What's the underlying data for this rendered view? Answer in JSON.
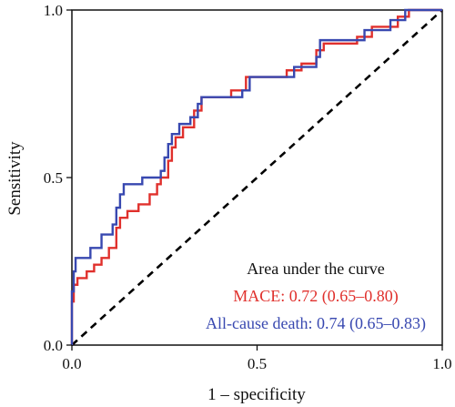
{
  "chart_data": {
    "type": "line",
    "title": "",
    "xlabel": "1 – specificity",
    "ylabel": "Sensitivity",
    "xlim": [
      0,
      1
    ],
    "ylim": [
      0,
      1
    ],
    "xticks": [
      0.0,
      0.5,
      1.0
    ],
    "yticks": [
      0.0,
      0.5,
      1.0
    ],
    "xtick_labels": [
      "0.0",
      "0.5",
      "1.0"
    ],
    "ytick_labels": [
      "0.0",
      "0.5",
      "1.0"
    ],
    "grid": false,
    "legend_placement": "bottom-right",
    "legend_title": "Area under the curve",
    "reference_line": {
      "style": "dashed",
      "color": "#000000",
      "points": [
        [
          0,
          0
        ],
        [
          1,
          1
        ]
      ]
    },
    "series": [
      {
        "name": "MACE: 0.72 (0.65–0.80)",
        "color": "#e0302c",
        "points": [
          [
            0,
            0
          ],
          [
            0,
            0.13
          ],
          [
            0.005,
            0.13
          ],
          [
            0.005,
            0.18
          ],
          [
            0.015,
            0.18
          ],
          [
            0.015,
            0.2
          ],
          [
            0.04,
            0.2
          ],
          [
            0.04,
            0.22
          ],
          [
            0.06,
            0.22
          ],
          [
            0.06,
            0.24
          ],
          [
            0.08,
            0.24
          ],
          [
            0.08,
            0.26
          ],
          [
            0.1,
            0.26
          ],
          [
            0.1,
            0.29
          ],
          [
            0.12,
            0.29
          ],
          [
            0.12,
            0.35
          ],
          [
            0.13,
            0.35
          ],
          [
            0.13,
            0.38
          ],
          [
            0.15,
            0.38
          ],
          [
            0.15,
            0.4
          ],
          [
            0.18,
            0.4
          ],
          [
            0.18,
            0.42
          ],
          [
            0.21,
            0.42
          ],
          [
            0.21,
            0.45
          ],
          [
            0.23,
            0.45
          ],
          [
            0.23,
            0.48
          ],
          [
            0.24,
            0.48
          ],
          [
            0.24,
            0.5
          ],
          [
            0.26,
            0.5
          ],
          [
            0.26,
            0.55
          ],
          [
            0.27,
            0.55
          ],
          [
            0.27,
            0.59
          ],
          [
            0.28,
            0.59
          ],
          [
            0.28,
            0.62
          ],
          [
            0.3,
            0.62
          ],
          [
            0.3,
            0.65
          ],
          [
            0.33,
            0.65
          ],
          [
            0.33,
            0.7
          ],
          [
            0.35,
            0.7
          ],
          [
            0.35,
            0.74
          ],
          [
            0.43,
            0.74
          ],
          [
            0.43,
            0.76
          ],
          [
            0.47,
            0.76
          ],
          [
            0.47,
            0.8
          ],
          [
            0.58,
            0.8
          ],
          [
            0.58,
            0.82
          ],
          [
            0.62,
            0.82
          ],
          [
            0.62,
            0.84
          ],
          [
            0.66,
            0.84
          ],
          [
            0.66,
            0.88
          ],
          [
            0.68,
            0.88
          ],
          [
            0.68,
            0.9
          ],
          [
            0.77,
            0.9
          ],
          [
            0.77,
            0.92
          ],
          [
            0.81,
            0.92
          ],
          [
            0.81,
            0.95
          ],
          [
            0.88,
            0.95
          ],
          [
            0.88,
            0.98
          ],
          [
            0.91,
            0.98
          ],
          [
            0.91,
            1.0
          ],
          [
            1.0,
            1.0
          ]
        ]
      },
      {
        "name": "All-cause death: 0.74 (0.65–0.83)",
        "color": "#3848b0",
        "points": [
          [
            0,
            0
          ],
          [
            0,
            0.16
          ],
          [
            0.005,
            0.16
          ],
          [
            0.005,
            0.22
          ],
          [
            0.01,
            0.22
          ],
          [
            0.01,
            0.26
          ],
          [
            0.05,
            0.26
          ],
          [
            0.05,
            0.29
          ],
          [
            0.08,
            0.29
          ],
          [
            0.08,
            0.33
          ],
          [
            0.11,
            0.33
          ],
          [
            0.11,
            0.36
          ],
          [
            0.12,
            0.36
          ],
          [
            0.12,
            0.41
          ],
          [
            0.13,
            0.41
          ],
          [
            0.13,
            0.45
          ],
          [
            0.14,
            0.45
          ],
          [
            0.14,
            0.48
          ],
          [
            0.19,
            0.48
          ],
          [
            0.19,
            0.5
          ],
          [
            0.24,
            0.5
          ],
          [
            0.24,
            0.52
          ],
          [
            0.25,
            0.52
          ],
          [
            0.25,
            0.56
          ],
          [
            0.26,
            0.56
          ],
          [
            0.26,
            0.6
          ],
          [
            0.27,
            0.6
          ],
          [
            0.27,
            0.63
          ],
          [
            0.29,
            0.63
          ],
          [
            0.29,
            0.66
          ],
          [
            0.32,
            0.66
          ],
          [
            0.32,
            0.68
          ],
          [
            0.34,
            0.68
          ],
          [
            0.34,
            0.72
          ],
          [
            0.35,
            0.72
          ],
          [
            0.35,
            0.74
          ],
          [
            0.46,
            0.74
          ],
          [
            0.46,
            0.76
          ],
          [
            0.48,
            0.76
          ],
          [
            0.48,
            0.8
          ],
          [
            0.6,
            0.8
          ],
          [
            0.6,
            0.83
          ],
          [
            0.66,
            0.83
          ],
          [
            0.66,
            0.86
          ],
          [
            0.67,
            0.86
          ],
          [
            0.67,
            0.91
          ],
          [
            0.79,
            0.91
          ],
          [
            0.79,
            0.94
          ],
          [
            0.86,
            0.94
          ],
          [
            0.86,
            0.97
          ],
          [
            0.9,
            0.97
          ],
          [
            0.9,
            1.0
          ],
          [
            1.0,
            1.0
          ]
        ]
      }
    ]
  }
}
